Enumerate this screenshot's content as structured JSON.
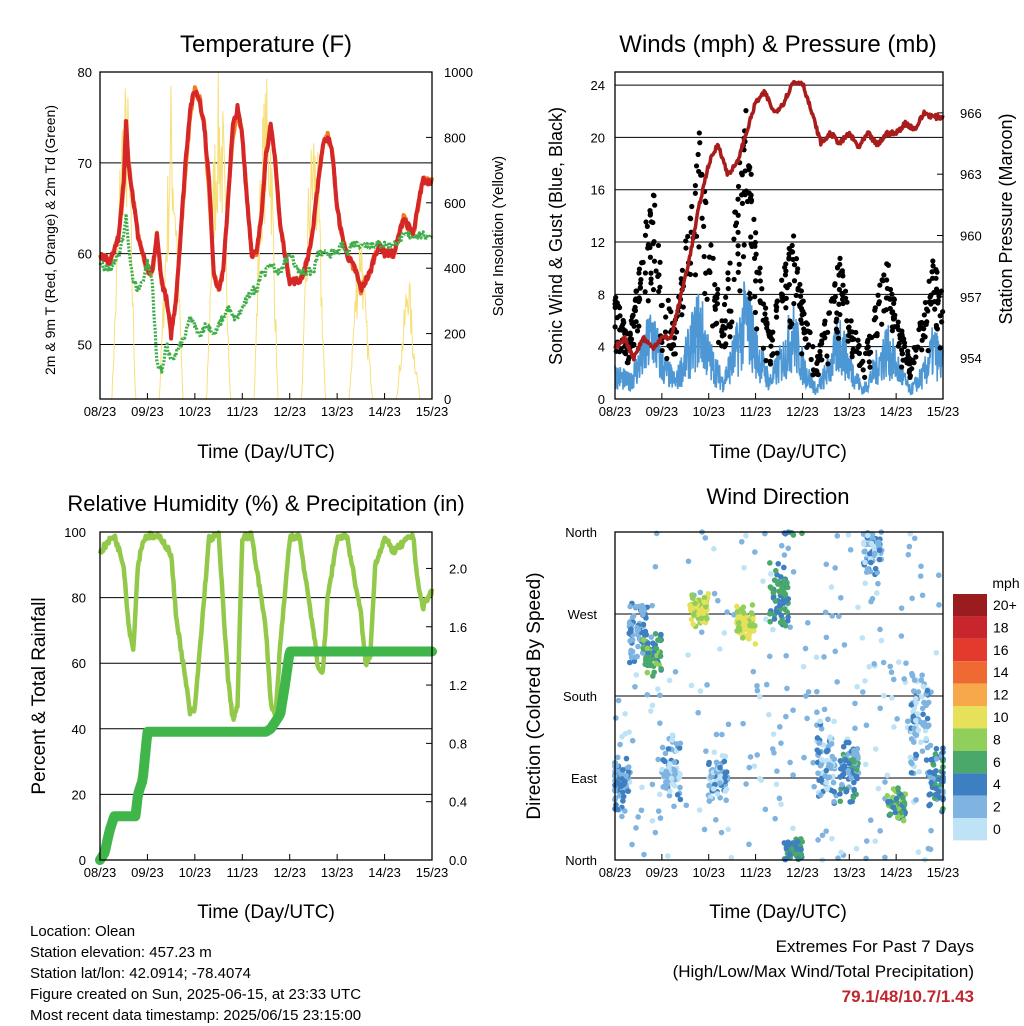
{
  "station_info": {
    "location": "Location: Olean",
    "elevation": "Station elevation: 457.23 m",
    "latlon": "Station lat/lon: 42.0914; -78.4074",
    "created": "Figure created on Sun, 2025-06-15, at 23:33 UTC",
    "latest": "Most recent data timestamp: 2025/06/15 23:15:00"
  },
  "extremes": {
    "title": "Extremes For Past 7 Days",
    "subtitle": "(High/Low/Max Wind/Total Precipitation)",
    "values": "79.1/48/10.7/1.43"
  },
  "colors": {
    "temp_2m": "#d62728",
    "temp_9m": "#f47a20",
    "dewpoint": "#3fae49",
    "solar": "#f7e07a",
    "gust": "#000000",
    "wind": "#4d97d4",
    "pressure": "#a81c1c",
    "rh": "#93c94a",
    "precip": "#3fb54a"
  },
  "chart_data": [
    {
      "type": "line",
      "title": "Temperature (F)",
      "xlabel": "Time (Day/UTC)",
      "ylabel": "2m & 9m T (Red, Orange) & 2m Td (Green)",
      "y2label": "Solar Insolation (Yellow)",
      "x_ticks": [
        "08/23",
        "09/23",
        "10/23",
        "11/23",
        "12/23",
        "13/23",
        "14/23",
        "15/23"
      ],
      "ylim": [
        44,
        80
      ],
      "y_ticks": [
        "50",
        "60",
        "70",
        "80"
      ],
      "y2lim": [
        0,
        1000
      ],
      "y2_ticks": [
        "0",
        "200",
        "400",
        "600",
        "800",
        "1000"
      ],
      "x": [
        0,
        0.2,
        0.4,
        0.5,
        0.55,
        0.6,
        0.7,
        0.8,
        0.9,
        1.0,
        1.1,
        1.2,
        1.3,
        1.4,
        1.5,
        1.6,
        1.7,
        1.8,
        1.9,
        2.0,
        2.1,
        2.2,
        2.3,
        2.4,
        2.5,
        2.6,
        2.7,
        2.8,
        2.9,
        3.0,
        3.1,
        3.2,
        3.3,
        3.4,
        3.5,
        3.6,
        3.7,
        3.8,
        3.9,
        4.0,
        4.1,
        4.2,
        4.3,
        4.4,
        4.5,
        4.6,
        4.7,
        4.8,
        4.9,
        5.0,
        5.1,
        5.2,
        5.3,
        5.4,
        5.5,
        5.6,
        5.7,
        5.8,
        5.9,
        6.0,
        6.2,
        6.4,
        6.6,
        6.8,
        7.0
      ],
      "series": [
        {
          "name": "2m T",
          "values": [
            60,
            59,
            62,
            68,
            75,
            70,
            66,
            62,
            60,
            58,
            58,
            62,
            57,
            55,
            51,
            55,
            62,
            70,
            76,
            78,
            77,
            74,
            68,
            58,
            56,
            58,
            66,
            74,
            76,
            73,
            66,
            60,
            60,
            64,
            71,
            74,
            70,
            63,
            60,
            57,
            57,
            57,
            58,
            60,
            63,
            68,
            72,
            73,
            71,
            65,
            62,
            60,
            59,
            58,
            56,
            57,
            58,
            60,
            61,
            60,
            60,
            64,
            62,
            68,
            68
          ]
        },
        {
          "name": "9m T",
          "values": [
            60,
            59,
            62,
            67,
            74,
            70,
            66,
            62,
            60,
            58,
            58,
            62,
            57,
            55,
            51,
            55,
            62,
            69,
            75,
            78,
            77,
            74,
            67,
            58,
            56,
            58,
            66,
            73,
            76,
            73,
            66,
            60,
            60,
            64,
            71,
            74,
            70,
            63,
            60,
            57,
            57,
            57,
            58,
            60,
            63,
            68,
            72,
            73,
            71,
            65,
            62,
            60,
            59,
            58,
            56,
            57,
            58,
            60,
            61,
            60,
            60,
            64,
            62,
            68,
            68
          ]
        },
        {
          "name": "2m Td",
          "values": [
            59,
            58,
            60,
            62,
            64,
            61,
            57,
            56,
            57,
            59,
            57,
            48,
            47,
            50,
            48,
            49,
            50,
            51,
            53,
            52,
            51,
            52,
            52,
            51,
            52,
            53,
            54,
            53,
            53,
            54,
            55,
            56,
            56,
            58,
            58,
            59,
            58,
            58,
            59,
            60,
            59,
            58,
            58,
            58,
            58,
            60,
            60,
            60,
            60,
            60,
            61,
            60,
            61,
            61,
            61,
            61,
            61,
            61,
            61,
            61,
            61,
            62,
            62,
            62,
            62
          ]
        }
      ],
      "solar": {
        "x": [
          0,
          0.25,
          0.45,
          0.5,
          0.6,
          0.75,
          1.0,
          1.25,
          1.4,
          1.5,
          1.6,
          1.75,
          2.0,
          2.25,
          2.4,
          2.5,
          2.6,
          2.75,
          3.0,
          3.25,
          3.4,
          3.5,
          3.6,
          3.75,
          4.0,
          4.25,
          4.4,
          4.5,
          4.6,
          4.75,
          5.0,
          5.25,
          5.4,
          5.5,
          5.6,
          5.75,
          6.0,
          6.25,
          6.4,
          6.5,
          6.6,
          6.75,
          7.0
        ],
        "values": [
          0,
          0,
          900,
          1000,
          950,
          0,
          0,
          0,
          600,
          1000,
          700,
          0,
          0,
          0,
          800,
          1020,
          900,
          0,
          0,
          0,
          850,
          1000,
          950,
          0,
          0,
          0,
          700,
          900,
          750,
          0,
          0,
          0,
          400,
          600,
          300,
          0,
          0,
          0,
          250,
          450,
          200,
          0,
          0
        ]
      }
    },
    {
      "type": "scatter",
      "title": "Winds (mph) & Pressure (mb)",
      "xlabel": "Time (Day/UTC)",
      "ylabel": "Sonic Wind & Gust (Blue, Black)",
      "y2label": "Station Pressure (Maroon)",
      "x_ticks": [
        "08/23",
        "09/23",
        "10/23",
        "11/23",
        "12/23",
        "13/23",
        "14/23",
        "15/23"
      ],
      "ylim": [
        0,
        25
      ],
      "y_ticks": [
        "0",
        "4",
        "8",
        "12",
        "16",
        "20",
        "24"
      ],
      "y2lim": [
        952.0,
        968.0
      ],
      "y2_ticks": [
        "954",
        "957",
        "960",
        "963",
        "966"
      ],
      "wind_envelope": {
        "x": [
          0,
          0.3,
          0.6,
          0.8,
          1.0,
          1.3,
          1.6,
          1.8,
          2.0,
          2.3,
          2.6,
          2.8,
          3.0,
          3.3,
          3.6,
          3.8,
          4.0,
          4.3,
          4.6,
          4.8,
          5.0,
          5.3,
          5.6,
          5.8,
          6.0,
          6.3,
          6.6,
          6.8,
          7.0
        ],
        "values": [
          3,
          2,
          5,
          8,
          4,
          2,
          6,
          9,
          5,
          2,
          6,
          10,
          6,
          2,
          5,
          8,
          4,
          1,
          4,
          7,
          4,
          1,
          4,
          6,
          4,
          1,
          3,
          6,
          4
        ]
      },
      "gust_envelope": {
        "x": [
          0,
          0.3,
          0.6,
          0.8,
          1.0,
          1.3,
          1.6,
          1.8,
          2.0,
          2.3,
          2.6,
          2.8,
          3.0,
          3.3,
          3.6,
          3.8,
          4.0,
          4.3,
          4.6,
          4.8,
          5.0,
          5.3,
          5.6,
          5.8,
          6.0,
          6.3,
          6.6,
          6.8,
          7.0
        ],
        "values": [
          8,
          5,
          12,
          17,
          9,
          6,
          15,
          21,
          13,
          6,
          16,
          23,
          13,
          5,
          10,
          13,
          8,
          3,
          8,
          11,
          7,
          3,
          8,
          11,
          7,
          3,
          7,
          11,
          8
        ]
      },
      "pressure": {
        "x": [
          0,
          0.2,
          0.4,
          0.6,
          0.8,
          1.0,
          1.2,
          1.4,
          1.6,
          1.8,
          2.0,
          2.2,
          2.4,
          2.6,
          2.8,
          3.0,
          3.2,
          3.4,
          3.6,
          3.8,
          4.0,
          4.2,
          4.4,
          4.6,
          4.8,
          5.0,
          5.2,
          5.4,
          5.6,
          5.8,
          6.0,
          6.2,
          6.4,
          6.6,
          6.8,
          7.0
        ],
        "values": [
          954.5,
          955,
          954,
          955,
          954.5,
          955,
          955,
          957,
          959,
          961.5,
          963.5,
          964.5,
          963,
          963.5,
          965,
          966.5,
          967,
          966,
          966.5,
          967.5,
          967.5,
          966,
          964.5,
          965,
          964.5,
          965,
          964.3,
          965,
          964.4,
          965,
          965,
          965.5,
          965.2,
          966,
          965.8,
          965.8
        ]
      }
    },
    {
      "type": "line",
      "title": "Relative Humidity (%) & Precipitation (in)",
      "xlabel": "Time (Day/UTC)",
      "ylabel": "Percent & Total Rainfall",
      "x_ticks": [
        "08/23",
        "09/23",
        "10/23",
        "11/23",
        "12/23",
        "13/23",
        "14/23",
        "15/23"
      ],
      "ylim": [
        0,
        100
      ],
      "y_ticks": [
        "0",
        "20",
        "40",
        "60",
        "80",
        "100"
      ],
      "y2lim": [
        0,
        2.25
      ],
      "y2_ticks": [
        "0.0",
        "0.4",
        "0.8",
        "1.2",
        "1.6",
        "2.0"
      ],
      "rh": {
        "x": [
          0,
          0.3,
          0.5,
          0.6,
          0.7,
          0.8,
          0.9,
          1.0,
          1.3,
          1.5,
          1.6,
          1.8,
          1.9,
          2.0,
          2.3,
          2.5,
          2.7,
          2.8,
          2.9,
          3.0,
          3.2,
          3.5,
          3.6,
          3.7,
          3.8,
          4.0,
          4.2,
          4.5,
          4.6,
          4.7,
          4.8,
          5.0,
          5.2,
          5.5,
          5.6,
          5.7,
          5.8,
          6.0,
          6.2,
          6.5,
          6.6,
          6.7,
          6.8,
          7.0
        ],
        "values": [
          94,
          99,
          90,
          72,
          64,
          90,
          97,
          99,
          98,
          93,
          75,
          55,
          45,
          46,
          98,
          99,
          55,
          43,
          47,
          98,
          99,
          70,
          48,
          44,
          65,
          98,
          99,
          70,
          58,
          58,
          80,
          98,
          99,
          75,
          60,
          62,
          90,
          98,
          94,
          98,
          99,
          85,
          77,
          82
        ]
      },
      "precip": {
        "x": [
          0,
          0.1,
          0.2,
          0.3,
          0.5,
          0.75,
          0.8,
          0.9,
          1.0,
          3.5,
          3.6,
          3.8,
          3.9,
          4.0,
          7.0
        ],
        "values": [
          0,
          0.05,
          0.2,
          0.3,
          0.3,
          0.3,
          0.45,
          0.55,
          0.88,
          0.88,
          0.9,
          1.0,
          1.2,
          1.43,
          1.43
        ]
      }
    },
    {
      "type": "scatter",
      "title": "Wind Direction",
      "xlabel": "Time (Day/UTC)",
      "ylabel": "Direction (Colored By Speed)",
      "x_ticks": [
        "08/23",
        "09/23",
        "10/23",
        "11/23",
        "12/23",
        "13/23",
        "14/23",
        "15/23"
      ],
      "y_ticks": [
        "North",
        "East",
        "South",
        "West",
        "North"
      ],
      "ylim": [
        0,
        360
      ],
      "legend_title": "mph",
      "legend_labels": [
        "20+",
        "18",
        "16",
        "14",
        "12",
        "10",
        "8",
        "6",
        "4",
        "2",
        "0"
      ],
      "legend_colors": [
        "#9b1c1f",
        "#c8262c",
        "#e23a2d",
        "#ef6a32",
        "#f7a84a",
        "#e7e05a",
        "#8fcf5a",
        "#4aa86a",
        "#3d7fc1",
        "#7fb3e0",
        "#bfe3f6"
      ],
      "clusters": [
        {
          "x": 0.1,
          "dir": 80,
          "spread": 40,
          "speed": 3
        },
        {
          "x": 0.5,
          "dir": 250,
          "spread": 40,
          "speed": 3
        },
        {
          "x": 0.8,
          "dir": 225,
          "spread": 30,
          "speed": 6
        },
        {
          "x": 1.2,
          "dir": 100,
          "spread": 45,
          "speed": 2
        },
        {
          "x": 1.8,
          "dir": 275,
          "spread": 20,
          "speed": 9
        },
        {
          "x": 2.2,
          "dir": 90,
          "spread": 30,
          "speed": 2
        },
        {
          "x": 2.8,
          "dir": 260,
          "spread": 25,
          "speed": 9
        },
        {
          "x": 3.5,
          "dir": 290,
          "spread": 40,
          "speed": 5
        },
        {
          "x": 3.8,
          "dir": 10,
          "spread": 15,
          "speed": 5
        },
        {
          "x": 4.5,
          "dir": 110,
          "spread": 60,
          "speed": 2
        },
        {
          "x": 5.0,
          "dir": 100,
          "spread": 40,
          "speed": 4
        },
        {
          "x": 5.5,
          "dir": 340,
          "spread": 30,
          "speed": 2
        },
        {
          "x": 6.0,
          "dir": 60,
          "spread": 20,
          "speed": 6
        },
        {
          "x": 6.5,
          "dir": 150,
          "spread": 70,
          "speed": 2
        },
        {
          "x": 6.9,
          "dir": 90,
          "spread": 40,
          "speed": 4
        }
      ]
    }
  ]
}
